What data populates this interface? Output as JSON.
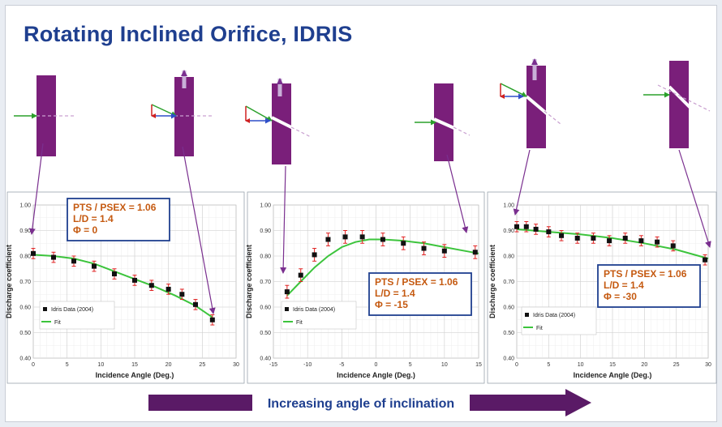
{
  "title": "Rotating Inclined Orifice, IDRIS",
  "colors": {
    "title": "#1f3f8f",
    "plate": "#7a1f7a",
    "arrow": "#7a2f8f",
    "fit": "#3cc43c",
    "data": "#111111",
    "error": "#e02020",
    "box_text": "#c55a11",
    "box_border": "#1f3f8f"
  },
  "caption": "Increasing angle of inclination",
  "chart_data": [
    {
      "type": "scatter",
      "xlabel": "Incidence Angle (Deg.)",
      "ylabel": "Discharge coefficient",
      "xlim": [
        0,
        30
      ],
      "ylim": [
        0.4,
        1.0
      ],
      "xticks": [
        "0",
        "5",
        "10",
        "15",
        "20",
        "25",
        "30"
      ],
      "yticks": [
        "0.40",
        "0.50",
        "0.60",
        "0.70",
        "0.80",
        "0.90",
        "1.00"
      ],
      "grid": true,
      "legend": [
        "Idris Data (2004)",
        "Fit"
      ],
      "annotation": [
        "PTS / PSEX = 1.06",
        "L/D = 1.4",
        "Φ = 0"
      ],
      "series": [
        {
          "name": "Idris Data (2004)",
          "x": [
            0,
            3,
            6,
            9,
            12,
            15,
            17.5,
            20,
            22,
            24,
            26.5
          ],
          "y": [
            0.81,
            0.795,
            0.78,
            0.76,
            0.73,
            0.705,
            0.685,
            0.67,
            0.65,
            0.61,
            0.55
          ],
          "err": 0.02
        },
        {
          "name": "Fit",
          "x": [
            0,
            3,
            6,
            9,
            12,
            15,
            18,
            21,
            24,
            26.5
          ],
          "y": [
            0.805,
            0.8,
            0.79,
            0.77,
            0.74,
            0.71,
            0.68,
            0.645,
            0.605,
            0.56
          ]
        }
      ]
    },
    {
      "type": "scatter",
      "xlabel": "Incidence Angle (Deg.)",
      "ylabel": "Discharge coefficient",
      "xlim": [
        -15,
        15
      ],
      "ylim": [
        0.4,
        1.0
      ],
      "xticks": [
        "-15",
        "-10",
        "-5",
        "0",
        "5",
        "10",
        "15"
      ],
      "yticks": [
        "0.40",
        "0.50",
        "0.60",
        "0.70",
        "0.80",
        "0.90",
        "1.00"
      ],
      "grid": true,
      "legend": [
        "Idris Data (2004)",
        "Fit"
      ],
      "annotation": [
        "PTS / PSEX = 1.06",
        "L/D = 1.4",
        "Φ = -15"
      ],
      "series": [
        {
          "name": "Idris Data (2004)",
          "x": [
            -13,
            -11,
            -9,
            -7,
            -4.5,
            -2,
            1,
            4,
            7,
            10,
            14.5
          ],
          "y": [
            0.66,
            0.725,
            0.805,
            0.865,
            0.875,
            0.875,
            0.865,
            0.85,
            0.83,
            0.82,
            0.815
          ],
          "err": 0.025
        },
        {
          "name": "Fit",
          "x": [
            -13,
            -11,
            -9,
            -7,
            -5,
            -3,
            -1,
            1,
            4,
            7,
            10,
            13,
            15
          ],
          "y": [
            0.645,
            0.7,
            0.755,
            0.8,
            0.835,
            0.855,
            0.865,
            0.865,
            0.86,
            0.85,
            0.835,
            0.82,
            0.81
          ]
        }
      ]
    },
    {
      "type": "scatter",
      "xlabel": "Incidence Angle (Deg.)",
      "ylabel": "Discharge coefficient",
      "xlim": [
        0,
        30
      ],
      "ylim": [
        0.4,
        1.0
      ],
      "xticks": [
        "0",
        "5",
        "10",
        "15",
        "20",
        "25",
        "30"
      ],
      "yticks": [
        "0.40",
        "0.50",
        "0.60",
        "0.70",
        "0.80",
        "0.90",
        "1.00"
      ],
      "grid": true,
      "legend": [
        "Idris Data (2004)",
        "Fit"
      ],
      "annotation": [
        "PTS / PSEX = 1.06",
        "L/D = 1.4",
        "Φ = -30"
      ],
      "series": [
        {
          "name": "Idris Data (2004)",
          "x": [
            0,
            1.5,
            3,
            5,
            7,
            9.5,
            12,
            14.5,
            17,
            19.5,
            22,
            24.5,
            29.5
          ],
          "y": [
            0.915,
            0.915,
            0.905,
            0.895,
            0.88,
            0.87,
            0.87,
            0.86,
            0.87,
            0.86,
            0.855,
            0.84,
            0.785
          ],
          "err": 0.02
        },
        {
          "name": "Fit",
          "x": [
            0,
            5,
            10,
            15,
            20,
            25,
            30
          ],
          "y": [
            0.905,
            0.895,
            0.885,
            0.87,
            0.85,
            0.825,
            0.79
          ]
        }
      ]
    }
  ]
}
